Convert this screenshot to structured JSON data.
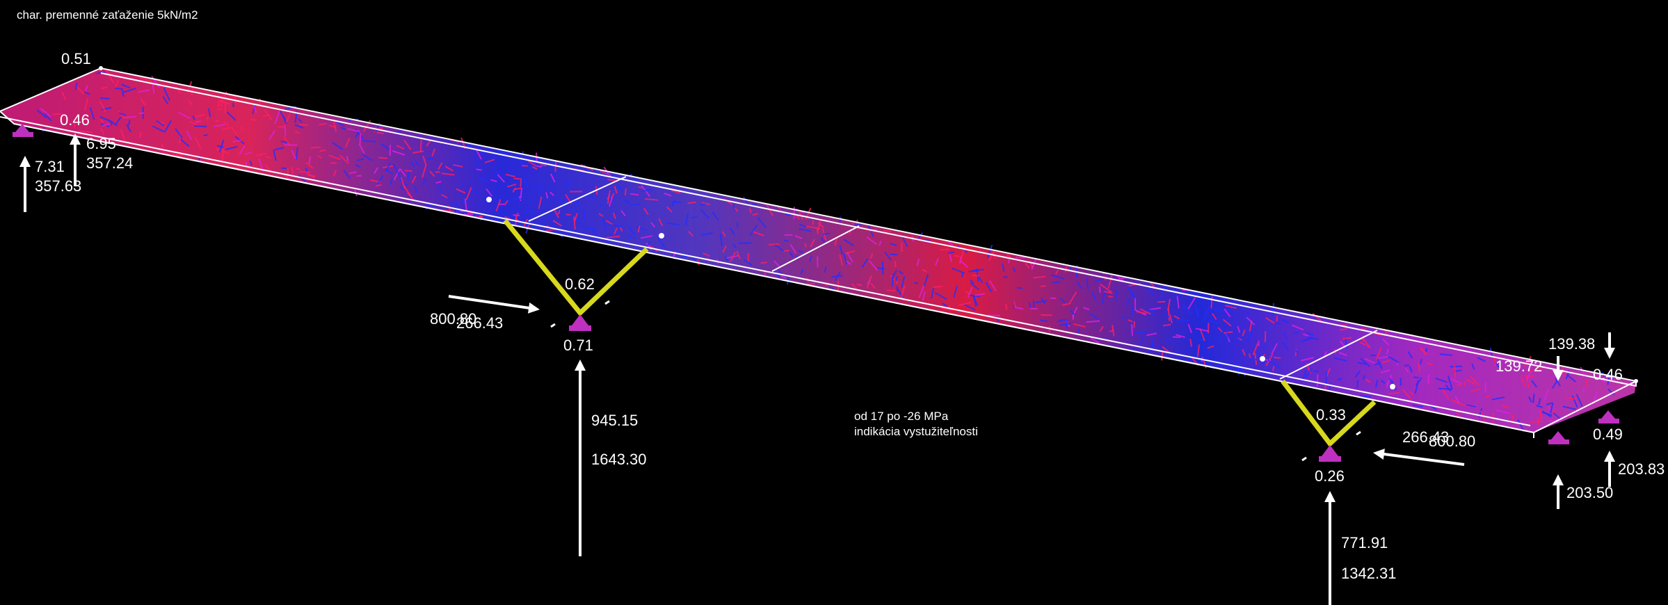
{
  "title": "char. premenné zaťaženie 5kN/m2",
  "legend": {
    "line1": "od 17 po -26 MPa",
    "line2": "indikácia vystužiteľnosti"
  },
  "colors": {
    "background": "#000000",
    "outline": "#ffffff",
    "column": "#d8d81e",
    "support": "#c030c0",
    "stress_high": "#ff2060",
    "stress_mid": "#e020e0",
    "stress_low": "#2030ff"
  },
  "labels": {
    "left_top": "0.51",
    "left_mid": "0.46",
    "left_v1": "6.95",
    "left_h1": "357.24",
    "left_v2": "7.31",
    "left_h2": "357.63",
    "col1_top": "0.62",
    "col1_h1": "800.80",
    "col1_h2": "266.43",
    "col1_bot": "0.71",
    "col1_v1": "945.15",
    "col1_v2": "1643.30",
    "col2_top": "0.33",
    "col2_h1": "266.43",
    "col2_h2": "800.80",
    "col2_bot": "0.26",
    "col2_v1": "771.91",
    "col2_v2": "1342.31",
    "right_d1": "139.38",
    "right_d2": "139.72",
    "right_top": "0.46",
    "right_mid": "0.49",
    "right_v1": "203.83",
    "right_v2": "203.50"
  }
}
